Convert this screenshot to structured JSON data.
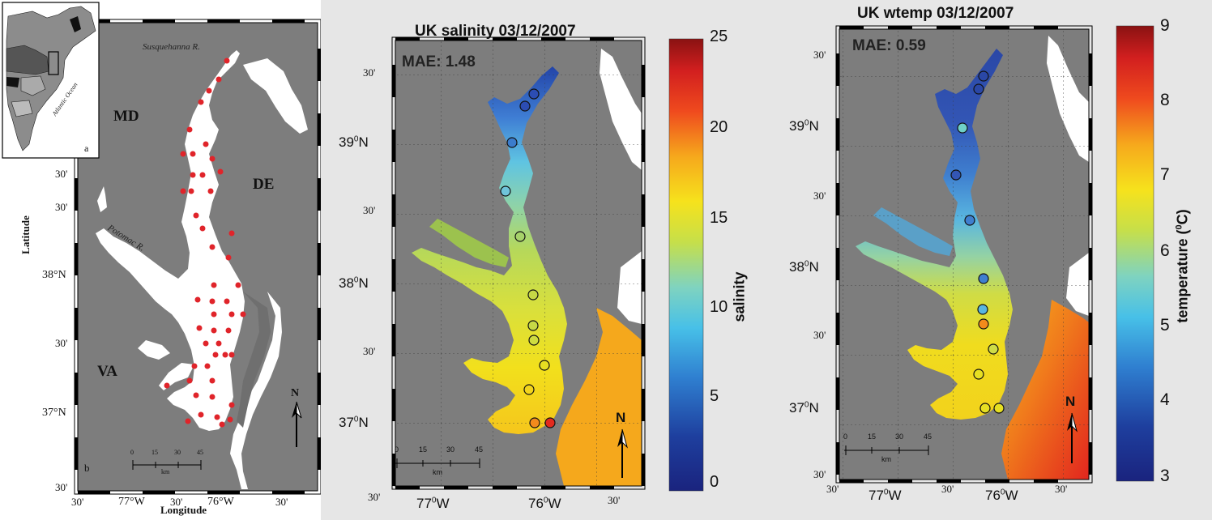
{
  "panel_a": {
    "inset_label": "a",
    "inset_ocean_label": "Atlantic Ocean",
    "map_label": "b",
    "state_labels": [
      "MD",
      "DE",
      "VA"
    ],
    "river_labels": [
      "Susquehanna R.",
      "Potomac R."
    ],
    "lat_ticks": [
      "30'",
      "30'",
      "38°N",
      "30'",
      "37°N",
      "30'"
    ],
    "lon_ticks": [
      "30'",
      "77°W",
      "30'",
      "76°W",
      "30'"
    ],
    "xlabel": "Longitude",
    "ylabel": "Latitude",
    "north_label": "N",
    "scalebar_ticks": [
      "0",
      "15",
      "30",
      "45"
    ],
    "scalebar_unit": "km",
    "station_color": "#e0242a"
  },
  "panel_b": {
    "title": "UK salinity 03/12/2007",
    "mae": "MAE: 1.48",
    "lat_ticks": [
      "30'",
      "39",
      "30'",
      "38",
      "30'",
      "37"
    ],
    "lat_suffix": "N",
    "lat_sup": "0",
    "lon_ticks": [
      "30'",
      "77",
      "76",
      "30'"
    ],
    "lon_suffix": "W",
    "north_label": "N",
    "scalebar_ticks": [
      "0",
      "15",
      "30",
      "45"
    ],
    "scalebar_unit": "km",
    "colorbar": {
      "label": "salinity",
      "ticks": [
        "25",
        "20",
        "15",
        "10",
        "5",
        "0"
      ],
      "min": 0,
      "max": 25,
      "colormap": "jet"
    }
  },
  "panel_c": {
    "title": "UK wtemp 03/12/2007",
    "mae": "MAE: 0.59",
    "lat_ticks": [
      "30'",
      "39",
      "30'",
      "38",
      "30'",
      "37",
      "30'"
    ],
    "lat_suffix": "N",
    "lat_sup": "0",
    "lon_ticks": [
      "30'",
      "77",
      "30'",
      "76",
      "30'"
    ],
    "lon_suffix": "W",
    "north_label": "N",
    "scalebar_ticks": [
      "0",
      "15",
      "30",
      "45"
    ],
    "scalebar_unit": "km",
    "colorbar": {
      "label": "temperature (",
      "label_sup": "0",
      "label_end": "C)",
      "ticks": [
        "9",
        "8",
        "7",
        "6",
        "5",
        "4",
        "3"
      ],
      "min": 3,
      "max": 9,
      "colormap": "jet"
    }
  },
  "colors": {
    "land": "#7d7d7d",
    "land_dark": "#6f6f6f",
    "water_white": "#ffffff"
  }
}
